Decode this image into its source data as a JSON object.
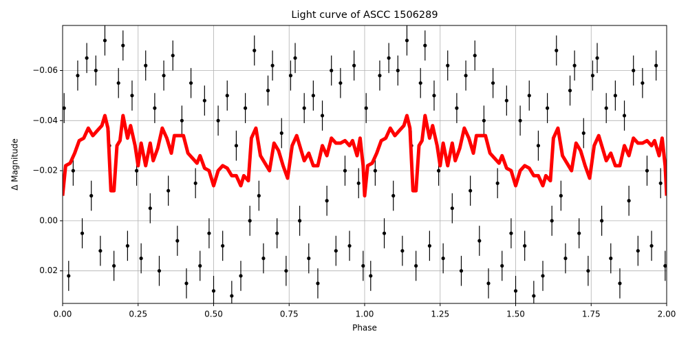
{
  "chart_data": {
    "type": "scatter",
    "title": "Light curve of ASCC 1506289",
    "xlabel": "Phase",
    "ylabel": "Δ Magnitude",
    "xlim": [
      0,
      2
    ],
    "ylim": [
      -0.078,
      0.033
    ],
    "invert_y": true,
    "grid": true,
    "xticks": [
      {
        "value": 0,
        "label": "0.00"
      },
      {
        "value": 0.25,
        "label": "0.25"
      },
      {
        "value": 0.5,
        "label": "0.50"
      },
      {
        "value": 0.75,
        "label": "0.75"
      },
      {
        "value": 1,
        "label": "1.00"
      },
      {
        "value": 1.25,
        "label": "1.25"
      },
      {
        "value": 1.5,
        "label": "1.50"
      },
      {
        "value": 1.75,
        "label": "1.75"
      },
      {
        "value": 2,
        "label": "2.00"
      }
    ],
    "yticks": [
      {
        "value": -0.06,
        "label": "−0.06"
      },
      {
        "value": -0.04,
        "label": "−0.04"
      },
      {
        "value": -0.02,
        "label": "−0.02"
      },
      {
        "value": 0,
        "label": "0.00"
      },
      {
        "value": 0.02,
        "label": "0.02"
      }
    ],
    "series": [
      {
        "type": "errorbar",
        "color": "#000000",
        "error": 0.006,
        "x": [
          0.005,
          0.02,
          0.035,
          0.05,
          0.065,
          0.08,
          0.095,
          0.11,
          0.125,
          0.14,
          0.155,
          0.17,
          0.185,
          0.2,
          0.215,
          0.23,
          0.245,
          0.26,
          0.275,
          0.29,
          0.305,
          0.32,
          0.335,
          0.35,
          0.365,
          0.38,
          0.395,
          0.41,
          0.425,
          0.44,
          0.455,
          0.47,
          0.485,
          0.5,
          0.515,
          0.53,
          0.545,
          0.56,
          0.575,
          0.59,
          0.605,
          0.62,
          0.635,
          0.65,
          0.665,
          0.68,
          0.695,
          0.71,
          0.725,
          0.74,
          0.755,
          0.77,
          0.785,
          0.8,
          0.815,
          0.83,
          0.845,
          0.86,
          0.875,
          0.89,
          0.905,
          0.92,
          0.935,
          0.95,
          0.965,
          0.98,
          0.995,
          1.005,
          1.02,
          1.035,
          1.05,
          1.065,
          1.08,
          1.095,
          1.11,
          1.125,
          1.14,
          1.155,
          1.17,
          1.185,
          1.2,
          1.215,
          1.23,
          1.245,
          1.26,
          1.275,
          1.29,
          1.305,
          1.32,
          1.335,
          1.35,
          1.365,
          1.38,
          1.395,
          1.41,
          1.425,
          1.44,
          1.455,
          1.47,
          1.485,
          1.5,
          1.515,
          1.53,
          1.545,
          1.56,
          1.575,
          1.59,
          1.605,
          1.62,
          1.635,
          1.65,
          1.665,
          1.68,
          1.695,
          1.71,
          1.725,
          1.74,
          1.755,
          1.77,
          1.785,
          1.8,
          1.815,
          1.83,
          1.845,
          1.86,
          1.875,
          1.89,
          1.905,
          1.92,
          1.935,
          1.95,
          1.965,
          1.98,
          1.995
        ],
        "values": [
          -0.045,
          0.022,
          -0.02,
          -0.058,
          0.005,
          -0.065,
          -0.01,
          -0.06,
          0.012,
          -0.072,
          -0.03,
          0.018,
          -0.055,
          -0.07,
          0.01,
          -0.05,
          -0.02,
          0.015,
          -0.062,
          -0.005,
          -0.045,
          0.02,
          -0.058,
          -0.012,
          -0.066,
          0.008,
          -0.04,
          0.025,
          -0.055,
          -0.015,
          0.018,
          -0.048,
          0.005,
          0.028,
          -0.04,
          0.01,
          -0.05,
          0.03,
          -0.03,
          0.022,
          -0.045,
          0,
          -0.068,
          -0.01,
          0.015,
          -0.052,
          -0.062,
          0.005,
          -0.035,
          0.02,
          -0.058,
          -0.065,
          0,
          -0.045,
          0.015,
          -0.05,
          0.025,
          -0.042,
          -0.008,
          -0.06,
          0.012,
          -0.055,
          -0.02,
          0.01,
          -0.062,
          -0.015,
          0.018,
          -0.045,
          0.022,
          -0.02,
          -0.058,
          0.005,
          -0.065,
          -0.01,
          -0.06,
          0.012,
          -0.072,
          -0.03,
          0.018,
          -0.055,
          -0.07,
          0.01,
          -0.05,
          -0.02,
          0.015,
          -0.062,
          -0.005,
          -0.045,
          0.02,
          -0.058,
          -0.012,
          -0.066,
          0.008,
          -0.04,
          0.025,
          -0.055,
          -0.015,
          0.018,
          -0.048,
          0.005,
          0.028,
          -0.04,
          0.01,
          -0.05,
          0.03,
          -0.03,
          0.022,
          -0.045,
          0,
          -0.068,
          -0.01,
          0.015,
          -0.052,
          -0.062,
          0.005,
          -0.035,
          0.02,
          -0.058,
          -0.065,
          0,
          -0.045,
          0.015,
          -0.05,
          0.025,
          -0.042,
          -0.008,
          -0.06,
          0.012,
          -0.055,
          -0.02,
          0.01,
          -0.062,
          -0.015,
          0.018
        ]
      },
      {
        "type": "line",
        "color": "#ff0000",
        "x": [
          0,
          0.01,
          0.025,
          0.04,
          0.055,
          0.07,
          0.085,
          0.1,
          0.115,
          0.13,
          0.14,
          0.15,
          0.16,
          0.17,
          0.18,
          0.19,
          0.2,
          0.215,
          0.225,
          0.24,
          0.25,
          0.26,
          0.275,
          0.29,
          0.3,
          0.315,
          0.33,
          0.345,
          0.36,
          0.37,
          0.385,
          0.4,
          0.415,
          0.43,
          0.445,
          0.455,
          0.47,
          0.485,
          0.5,
          0.515,
          0.53,
          0.545,
          0.56,
          0.575,
          0.59,
          0.6,
          0.615,
          0.625,
          0.64,
          0.655,
          0.67,
          0.685,
          0.7,
          0.715,
          0.73,
          0.745,
          0.76,
          0.775,
          0.79,
          0.8,
          0.815,
          0.83,
          0.845,
          0.86,
          0.875,
          0.89,
          0.905,
          0.92,
          0.935,
          0.95,
          0.96,
          0.975,
          0.985,
          0.995,
          1,
          1.01,
          1.025,
          1.04,
          1.055,
          1.07,
          1.085,
          1.1,
          1.115,
          1.13,
          1.14,
          1.15,
          1.16,
          1.17,
          1.18,
          1.19,
          1.2,
          1.215,
          1.225,
          1.24,
          1.25,
          1.26,
          1.275,
          1.29,
          1.3,
          1.315,
          1.33,
          1.345,
          1.36,
          1.37,
          1.385,
          1.4,
          1.415,
          1.43,
          1.445,
          1.455,
          1.47,
          1.485,
          1.5,
          1.515,
          1.53,
          1.545,
          1.56,
          1.575,
          1.59,
          1.6,
          1.615,
          1.625,
          1.64,
          1.655,
          1.67,
          1.685,
          1.7,
          1.715,
          1.73,
          1.745,
          1.76,
          1.775,
          1.79,
          1.8,
          1.815,
          1.83,
          1.845,
          1.86,
          1.875,
          1.89,
          1.905,
          1.92,
          1.935,
          1.95,
          1.96,
          1.975,
          1.985,
          1.995,
          2
        ],
        "values": [
          -0.01,
          -0.022,
          -0.023,
          -0.027,
          -0.032,
          -0.033,
          -0.037,
          -0.034,
          -0.036,
          -0.038,
          -0.042,
          -0.037,
          -0.012,
          -0.012,
          -0.03,
          -0.032,
          -0.042,
          -0.033,
          -0.038,
          -0.03,
          -0.022,
          -0.031,
          -0.022,
          -0.031,
          -0.024,
          -0.029,
          -0.037,
          -0.033,
          -0.027,
          -0.034,
          -0.034,
          -0.034,
          -0.027,
          -0.025,
          -0.023,
          -0.026,
          -0.021,
          -0.02,
          -0.014,
          -0.02,
          -0.022,
          -0.021,
          -0.018,
          -0.018,
          -0.014,
          -0.018,
          -0.016,
          -0.033,
          -0.037,
          -0.026,
          -0.023,
          -0.02,
          -0.031,
          -0.028,
          -0.022,
          -0.017,
          -0.03,
          -0.034,
          -0.028,
          -0.024,
          -0.027,
          -0.022,
          -0.022,
          -0.03,
          -0.026,
          -0.033,
          -0.031,
          -0.031,
          -0.032,
          -0.03,
          -0.032,
          -0.026,
          -0.033,
          -0.022,
          -0.01,
          -0.022,
          -0.023,
          -0.027,
          -0.032,
          -0.033,
          -0.037,
          -0.034,
          -0.036,
          -0.038,
          -0.042,
          -0.037,
          -0.012,
          -0.012,
          -0.03,
          -0.032,
          -0.042,
          -0.033,
          -0.038,
          -0.03,
          -0.022,
          -0.031,
          -0.022,
          -0.031,
          -0.024,
          -0.029,
          -0.037,
          -0.033,
          -0.027,
          -0.034,
          -0.034,
          -0.034,
          -0.027,
          -0.025,
          -0.023,
          -0.026,
          -0.021,
          -0.02,
          -0.014,
          -0.02,
          -0.022,
          -0.021,
          -0.018,
          -0.018,
          -0.014,
          -0.018,
          -0.016,
          -0.033,
          -0.037,
          -0.026,
          -0.023,
          -0.02,
          -0.031,
          -0.028,
          -0.022,
          -0.017,
          -0.03,
          -0.034,
          -0.028,
          -0.024,
          -0.027,
          -0.022,
          -0.022,
          -0.03,
          -0.026,
          -0.033,
          -0.031,
          -0.031,
          -0.032,
          -0.03,
          -0.032,
          -0.026,
          -0.033,
          -0.022,
          -0.01
        ]
      }
    ]
  }
}
